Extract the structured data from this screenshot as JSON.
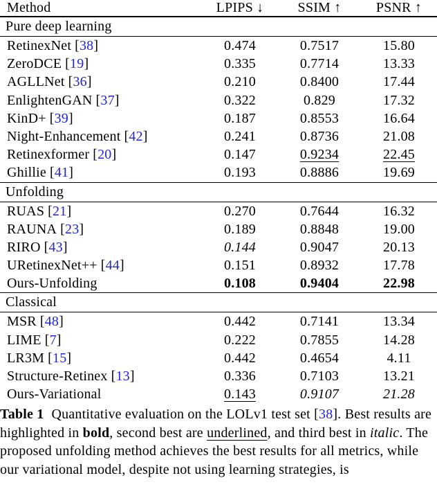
{
  "colors": {
    "citation_blue": "#2024DB",
    "text": "#000000",
    "background": "#FFFFFF"
  },
  "table": {
    "cite_open": "[",
    "cite_close": "]",
    "columns": [
      "Method",
      "LPIPS ↓",
      "SSIM ↑",
      "PSNR ↑"
    ],
    "emphasis_legend": {
      "bold": "best result",
      "underline": "second best",
      "italic": "third best"
    },
    "sections": [
      {
        "label": "Pure deep learning",
        "rows": [
          {
            "name": "RetinexNet",
            "cite": "38",
            "lpips": "0.474",
            "ssim": "0.7517",
            "psnr": "15.80"
          },
          {
            "name": "ZeroDCE",
            "cite": "19",
            "lpips": "0.335",
            "ssim": "0.7714",
            "psnr": "13.33"
          },
          {
            "name": "AGLLNet",
            "cite": "36",
            "lpips": "0.210",
            "ssim": "0.8400",
            "psnr": "17.44"
          },
          {
            "name": "EnlightenGAN",
            "cite": "37",
            "lpips": "0.322",
            "ssim": "0.829",
            "psnr": "17.32"
          },
          {
            "name": "KinD+",
            "cite": "39",
            "lpips": "0.187",
            "ssim": "0.8553",
            "psnr": "16.64"
          },
          {
            "name": "Night-Enhancement",
            "cite": "42",
            "lpips": "0.241",
            "ssim": "0.8736",
            "psnr": "21.08"
          },
          {
            "name": "Retinexformer",
            "cite": "20",
            "lpips": "0.147",
            "ssim": "0.9234",
            "psnr": "22.45"
          },
          {
            "name": "Ghillie",
            "cite": "41",
            "lpips": "0.193",
            "ssim": "0.8886",
            "psnr": "19.69"
          }
        ]
      },
      {
        "label": "Unfolding",
        "rows": [
          {
            "name": "RUAS",
            "cite": "21",
            "lpips": "0.270",
            "ssim": "0.7644",
            "psnr": "16.32"
          },
          {
            "name": "RAUNA",
            "cite": "23",
            "lpips": "0.189",
            "ssim": "0.8848",
            "psnr": "19.00"
          },
          {
            "name": "RIRO",
            "cite": "43",
            "lpips": "0.144",
            "ssim": "0.9047",
            "psnr": "20.13"
          },
          {
            "name": "URetinexNet++",
            "cite": "44",
            "lpips": "0.151",
            "ssim": "0.8932",
            "psnr": "17.78"
          },
          {
            "name": "Ours-Unfolding",
            "cite": "",
            "lpips": "0.108",
            "ssim": "0.9404",
            "psnr": "22.98"
          }
        ]
      },
      {
        "label": "Classical",
        "rows": [
          {
            "name": "MSR",
            "cite": "48",
            "lpips": "0.442",
            "ssim": "0.7141",
            "psnr": "13.34"
          },
          {
            "name": "LIME",
            "cite": "7",
            "lpips": "0.222",
            "ssim": "0.7855",
            "psnr": "14.28"
          },
          {
            "name": "LR3M",
            "cite": "15",
            "lpips": "0.442",
            "ssim": "0.4654",
            "psnr": "4.11"
          },
          {
            "name": "Structure-Retinex",
            "cite": "13",
            "lpips": "0.336",
            "ssim": "0.7103",
            "psnr": "13.21"
          },
          {
            "name": "Ours-Variational",
            "cite": "",
            "lpips": "0.143",
            "ssim": "0.9107",
            "psnr": "21.28"
          }
        ]
      }
    ]
  },
  "caption": {
    "label": "Table 1",
    "line1a": "Quantitative evaluation on the LOLv1 test set ",
    "cite": "38",
    "line1b": ".",
    "line2a": "Best results are highlighted in ",
    "line2b": "bold",
    "line2c": ", second best are",
    "line3a": "underlined",
    "line3b": ", and third best in ",
    "line3c": "italic",
    "line3d": ". The proposed unfolding",
    "line4": "method achieves the best results for all metrics, while our",
    "line5": "variational model, despite not using learning strategies, is"
  }
}
